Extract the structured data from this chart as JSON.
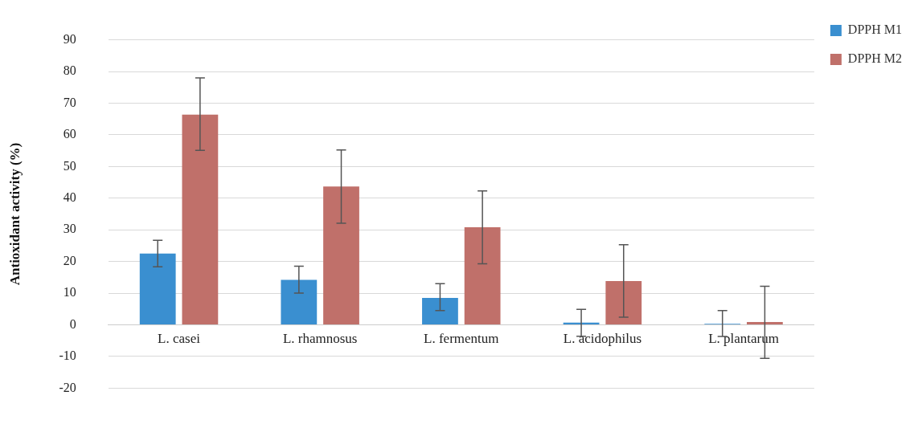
{
  "chart_data": {
    "type": "bar",
    "ylabel": "Antioxidant activity (%)",
    "categories": [
      "L. casei",
      "L. rhamnosus",
      "L. fermentum",
      "L. acidophilus",
      "L. plantarum"
    ],
    "series": [
      {
        "name": "DPPH M1",
        "color": "#3a8fd0",
        "values": [
          22.5,
          14.2,
          8.5,
          0.7,
          0.3
        ],
        "errors": [
          [
            18.3,
            26.7
          ],
          [
            10,
            18.5
          ],
          [
            4.5,
            13
          ],
          [
            -3.6,
            4.9
          ],
          [
            -3.7,
            4.5
          ]
        ]
      },
      {
        "name": "DPPH M2",
        "color": "#c0706a",
        "values": [
          66.4,
          43.7,
          30.8,
          13.8,
          0.9
        ],
        "errors": [
          [
            55.1,
            78
          ],
          [
            32.1,
            55.2
          ],
          [
            19.3,
            42.3
          ],
          [
            2.4,
            25.3
          ],
          [
            -10.6,
            12.2
          ]
        ]
      }
    ],
    "ylim": [
      -20,
      90
    ],
    "yticks": [
      -20,
      -10,
      0,
      10,
      20,
      30,
      40,
      50,
      60,
      70,
      80,
      90
    ],
    "grid": "y",
    "legend": "top right"
  }
}
